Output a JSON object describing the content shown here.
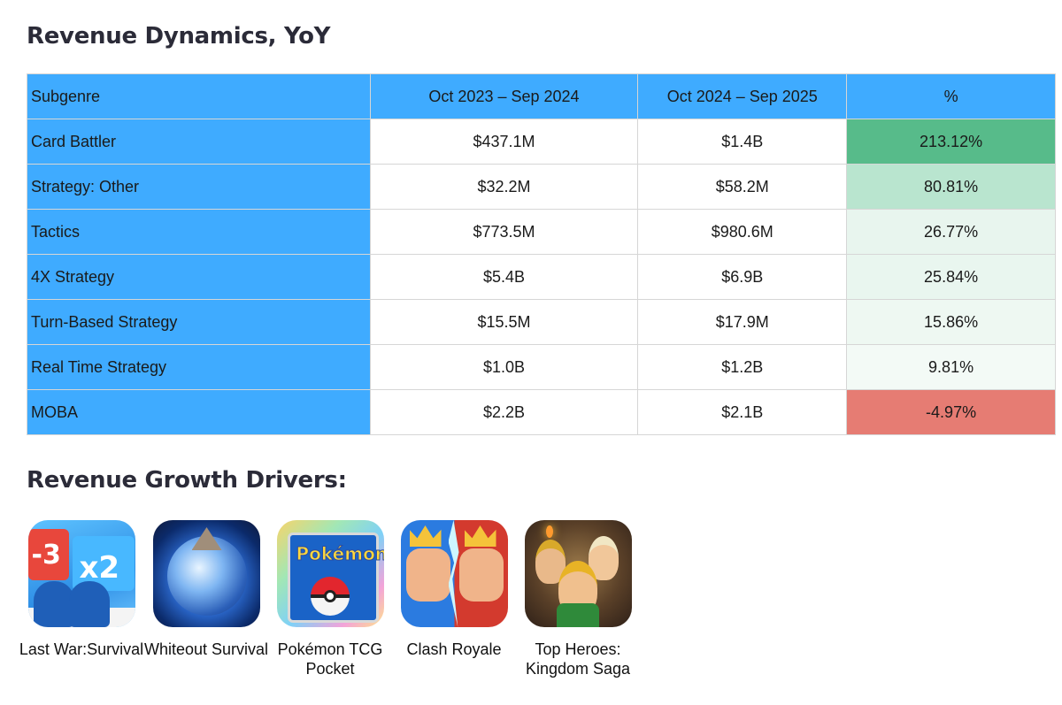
{
  "headings": {
    "table_title": "Revenue Dynamics, YoY",
    "drivers_title": "Revenue Growth Drivers:"
  },
  "table": {
    "headers": [
      "Subgenre",
      "Oct 2023 – Sep 2024",
      "Oct 2024 – Sep 2025",
      "%"
    ],
    "rows": [
      {
        "subgenre": "Card Battler",
        "prev": "$437.1M",
        "curr": "$1.4B",
        "pct": "213.12%",
        "pct_color": "#57bb8a"
      },
      {
        "subgenre": "Strategy: Other",
        "prev": "$32.2M",
        "curr": "$58.2M",
        "pct": "80.81%",
        "pct_color": "#b9e5cf"
      },
      {
        "subgenre": "Tactics",
        "prev": "$773.5M",
        "curr": "$980.6M",
        "pct": "26.77%",
        "pct_color": "#e8f5ee"
      },
      {
        "subgenre": "4X Strategy",
        "prev": "$5.4B",
        "curr": "$6.9B",
        "pct": "25.84%",
        "pct_color": "#e9f6ef"
      },
      {
        "subgenre": "Turn-Based Strategy",
        "prev": "$15.5M",
        "curr": "$17.9M",
        "pct": "15.86%",
        "pct_color": "#eef8f2"
      },
      {
        "subgenre": "Real Time Strategy",
        "prev": "$1.0B",
        "curr": "$1.2B",
        "pct": "9.81%",
        "pct_color": "#f3faf6"
      },
      {
        "subgenre": "MOBA",
        "prev": "$2.2B",
        "curr": "$2.1B",
        "pct": "-4.97%",
        "pct_color": "#e67c73"
      }
    ],
    "colors": {
      "header_bg": "#3fabff",
      "first_col_bg": "#3fabff",
      "border": "#d6d6d6"
    }
  },
  "drivers": [
    {
      "name": "Last War:Survival",
      "icon": "last-war-survival-app-icon"
    },
    {
      "name": "Whiteout Survival",
      "icon": "whiteout-survival-app-icon"
    },
    {
      "name": "Pokémon TCG Pocket",
      "icon": "pokemon-tcg-pocket-app-icon"
    },
    {
      "name": "Clash Royale",
      "icon": "clash-royale-app-icon"
    },
    {
      "name": "Top Heroes: Kingdom Saga",
      "icon": "top-heroes-app-icon"
    }
  ]
}
